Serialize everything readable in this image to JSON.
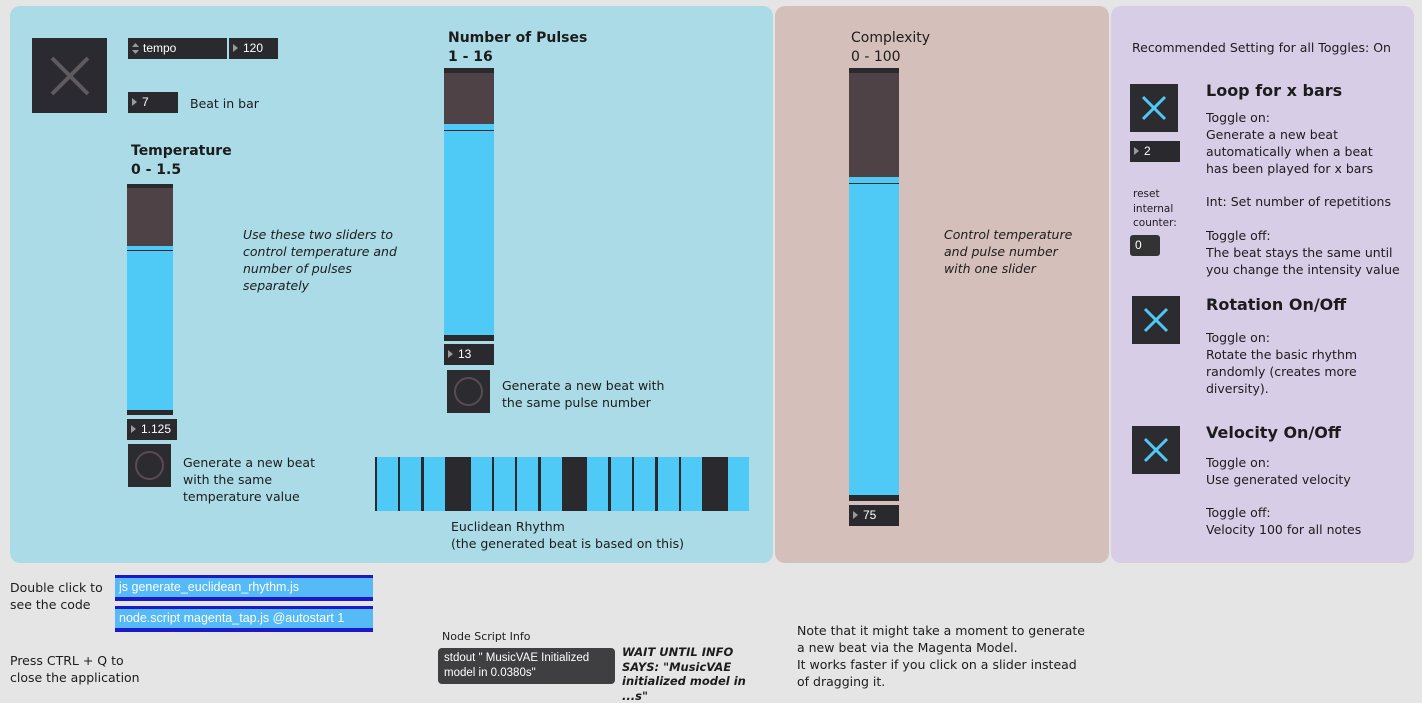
{
  "colors": {
    "accent": "#4fc9f6",
    "panel_blue": "#abdbe7",
    "panel_brown": "#d4bfbb",
    "panel_purple": "#d8cde7",
    "widget_dark": "#2a2a2e"
  },
  "transport": {
    "tempo_label": "tempo",
    "tempo_value": "120",
    "beat_value": "7",
    "beat_label": "Beat in bar"
  },
  "temperature": {
    "title": "Temperature",
    "range": "0 - 1.5",
    "value": "1.125",
    "value_fraction": 0.75,
    "button_text": "Generate a new beat with the same temperature value"
  },
  "hint_two_sliders": "Use these two sliders to control temperature and number of pulses separately",
  "pulses": {
    "title": "Number of Pulses",
    "range": "1 - 16",
    "value": "13",
    "value_fraction": 0.8,
    "button_text": "Generate a new beat with the same pulse number"
  },
  "euclidean": {
    "steps": [
      false,
      false,
      false,
      true,
      false,
      false,
      false,
      false,
      true,
      false,
      false,
      false,
      false,
      false,
      true,
      false
    ],
    "caption": "Euclidean Rhythm",
    "subcaption": "(the generated beat is based on this)"
  },
  "complexity": {
    "title": "Complexity",
    "range": "0 - 100",
    "value": "75",
    "value_fraction": 0.75,
    "hint": "Control temperature and pulse number with one slider"
  },
  "settings": {
    "recommended": "Recommended Setting for all Toggles: On",
    "loop": {
      "title": "Loop for x bars",
      "on_title": "Toggle on:",
      "on_text": "Generate a new beat automatically when a beat has been played for x bars",
      "bars_value": "2",
      "int_text": "Int: Set number of repetitions",
      "reset_label": "reset internal counter:",
      "counter_value": "0",
      "off_title": "Toggle off:",
      "off_text": "The beat stays the same until you change the intensity value"
    },
    "rotation": {
      "title": "Rotation On/Off",
      "on_title": "Toggle on:",
      "on_text": "Rotate the basic rhythm randomly (creates more diversity)."
    },
    "velocity": {
      "title": "Velocity On/Off",
      "on_title": "Toggle on:",
      "on_text": "Use generated velocity",
      "off_title": "Toggle off:",
      "off_text": "Velocity 100 for all notes"
    }
  },
  "footer": {
    "double_click": "Double click to see the code",
    "msg1": "js generate_euclidean_rhythm.js",
    "msg2": "node.script magenta_tap.js @autostart 1",
    "quit": "Press CTRL + Q to close the application",
    "node_info_label": "Node Script Info",
    "node_info_value": "stdout \" MusicVAE  Initialized model in 0.0380s\"",
    "wait_text": "WAIT UNTIL INFO SAYS: \"MusicVAE initialized model in ...s\"",
    "note": "Note that it might take a moment to generate a new beat via the Magenta Model.",
    "note2": "It works faster if you click on a slider instead of dragging it."
  }
}
